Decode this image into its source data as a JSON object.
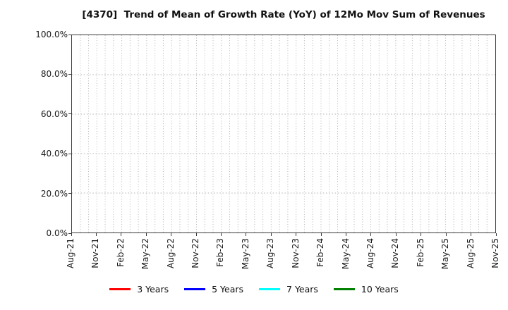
{
  "chart_data": {
    "type": "line",
    "title": "[4370]  Trend of Mean of Growth Rate (YoY) of 12Mo Mov Sum of Revenues",
    "xlabel": "",
    "ylabel": "",
    "ylim": [
      0,
      100
    ],
    "y_tick_step_percent": 20,
    "y_tick_labels": [
      "0.0%",
      "20.0%",
      "40.0%",
      "60.0%",
      "80.0%",
      "100.0%"
    ],
    "x_tick_labels": [
      "Aug-21",
      "Nov-21",
      "Feb-22",
      "May-22",
      "Aug-22",
      "Nov-22",
      "Feb-23",
      "May-23",
      "Aug-23",
      "Nov-23",
      "Feb-24",
      "May-24",
      "Aug-24",
      "Nov-24",
      "Feb-25",
      "May-25",
      "Aug-25",
      "Nov-25"
    ],
    "x_months_total": 51,
    "x_label_every_months": 3,
    "grid": true,
    "grid_color": "#b5b5b5",
    "axis_color": "#3b3b3b",
    "legend_position": "bottom",
    "series": [
      {
        "name": "3 Years",
        "color": "#ff0000",
        "values": []
      },
      {
        "name": "5 Years",
        "color": "#0000ff",
        "values": []
      },
      {
        "name": "7 Years",
        "color": "#00ffff",
        "values": []
      },
      {
        "name": "10 Years",
        "color": "#008000",
        "values": []
      }
    ]
  }
}
